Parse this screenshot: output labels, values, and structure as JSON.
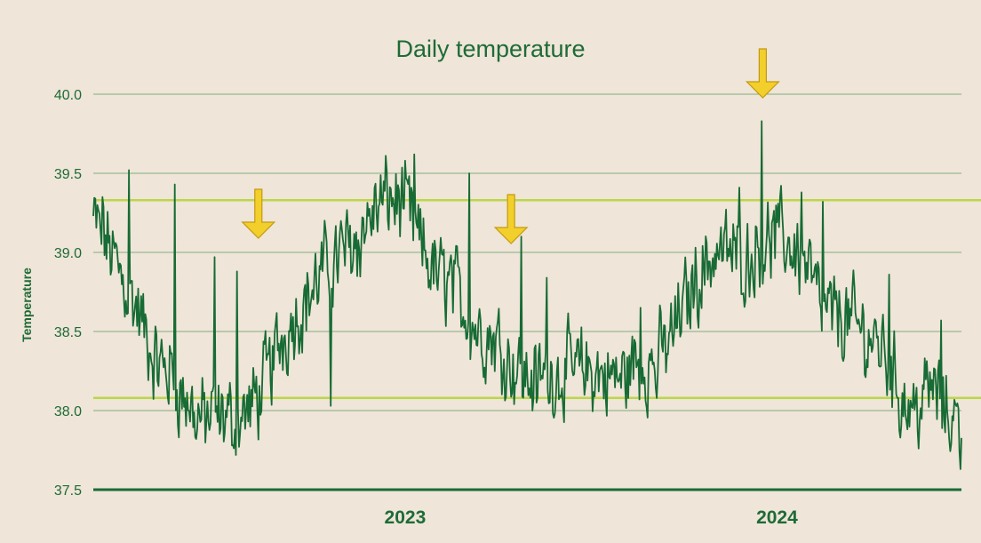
{
  "chart_data": {
    "type": "line",
    "title": "Daily temperature",
    "ylabel": "Temperature",
    "xlabel": "",
    "ylim": [
      37.5,
      40.0
    ],
    "yticks": [
      "37.5",
      "38.0",
      "38.5",
      "39.0",
      "39.5",
      "40.0"
    ],
    "xlim": [
      "2022-03-01",
      "2024-06-30"
    ],
    "xticks": [
      {
        "date": "2023-01-01",
        "label": "2023"
      },
      {
        "date": "2024-01-01",
        "label": "2024"
      }
    ],
    "grid": true,
    "legend": "none",
    "reference_lines": [
      39.33,
      38.08
    ],
    "annotations": [
      {
        "type": "arrow",
        "date": "2022-08-10"
      },
      {
        "type": "arrow",
        "date": "2023-04-15"
      },
      {
        "type": "arrow",
        "date": "2023-12-18"
      }
    ],
    "series_anchors": [
      [
        "2022-03-01",
        39.2
      ],
      [
        "2022-03-15",
        39.05
      ],
      [
        "2022-04-01",
        38.8
      ],
      [
        "2022-04-15",
        38.6
      ],
      [
        "2022-05-01",
        38.3
      ],
      [
        "2022-05-15",
        38.25
      ],
      [
        "2022-06-01",
        38.05
      ],
      [
        "2022-06-15",
        37.95
      ],
      [
        "2022-07-01",
        37.95
      ],
      [
        "2022-07-15",
        37.95
      ],
      [
        "2022-08-01",
        38.0
      ],
      [
        "2022-08-15",
        38.15
      ],
      [
        "2022-09-01",
        38.45
      ],
      [
        "2022-09-15",
        38.6
      ],
      [
        "2022-10-01",
        38.75
      ],
      [
        "2022-10-15",
        38.9
      ],
      [
        "2022-11-01",
        39.0
      ],
      [
        "2022-11-15",
        39.1
      ],
      [
        "2022-12-01",
        39.25
      ],
      [
        "2022-12-15",
        39.35
      ],
      [
        "2023-01-01",
        39.3
      ],
      [
        "2023-01-15",
        39.05
      ],
      [
        "2023-02-01",
        38.85
      ],
      [
        "2023-02-15",
        38.8
      ],
      [
        "2023-03-01",
        38.65
      ],
      [
        "2023-03-15",
        38.5
      ],
      [
        "2023-04-01",
        38.45
      ],
      [
        "2023-04-15",
        38.3
      ],
      [
        "2023-05-01",
        38.2
      ],
      [
        "2023-05-15",
        38.2
      ],
      [
        "2023-06-01",
        38.25
      ],
      [
        "2023-06-15",
        38.25
      ],
      [
        "2023-07-01",
        38.25
      ],
      [
        "2023-07-15",
        38.22
      ],
      [
        "2023-08-01",
        38.2
      ],
      [
        "2023-08-15",
        38.3
      ],
      [
        "2023-09-01",
        38.3
      ],
      [
        "2023-09-15",
        38.4
      ],
      [
        "2023-10-01",
        38.65
      ],
      [
        "2023-10-15",
        38.85
      ],
      [
        "2023-11-01",
        39.0
      ],
      [
        "2023-11-15",
        39.0
      ],
      [
        "2023-12-01",
        38.95
      ],
      [
        "2023-12-15",
        39.05
      ],
      [
        "2024-01-01",
        39.1
      ],
      [
        "2024-01-15",
        39.05
      ],
      [
        "2024-02-01",
        38.9
      ],
      [
        "2024-02-15",
        38.6
      ],
      [
        "2024-03-01",
        38.6
      ],
      [
        "2024-03-15",
        38.55
      ],
      [
        "2024-04-01",
        38.45
      ],
      [
        "2024-04-15",
        38.4
      ],
      [
        "2024-05-01",
        38.1
      ],
      [
        "2024-05-15",
        38.0
      ],
      [
        "2024-06-01",
        38.15
      ],
      [
        "2024-06-15",
        38.0
      ],
      [
        "2024-06-30",
        37.9
      ]
    ],
    "series_spikes": [
      [
        "2022-03-10",
        39.35
      ],
      [
        "2022-04-05",
        39.52
      ],
      [
        "2022-05-20",
        39.43
      ],
      [
        "2022-06-28",
        38.97
      ],
      [
        "2022-07-20",
        38.88
      ],
      [
        "2022-09-10",
        38.5
      ],
      [
        "2022-11-15",
        38.85
      ],
      [
        "2023-01-10",
        39.62
      ],
      [
        "2023-03-05",
        39.5
      ],
      [
        "2023-04-25",
        39.1
      ],
      [
        "2023-05-20",
        38.84
      ],
      [
        "2023-08-20",
        38.65
      ],
      [
        "2023-11-25",
        39.41
      ],
      [
        "2023-12-17",
        39.83
      ],
      [
        "2024-01-25",
        39.38
      ],
      [
        "2024-02-15",
        39.32
      ],
      [
        "2024-04-20",
        38.86
      ],
      [
        "2024-06-10",
        38.57
      ],
      [
        "2022-07-15",
        37.78
      ],
      [
        "2022-06-10",
        37.82
      ],
      [
        "2022-10-20",
        38.03
      ],
      [
        "2023-05-10",
        38.05
      ],
      [
        "2023-06-05",
        38.03
      ],
      [
        "2023-09-05",
        38.08
      ],
      [
        "2024-06-29",
        37.63
      ]
    ]
  }
}
